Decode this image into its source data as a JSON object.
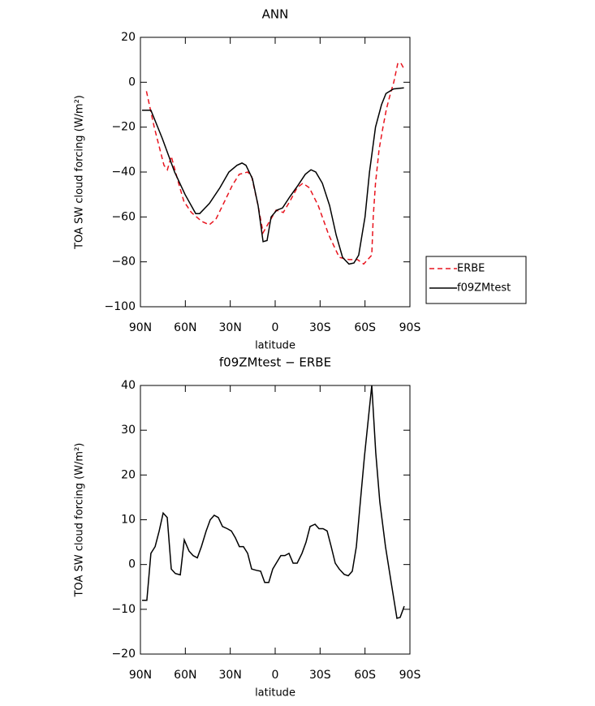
{
  "chart_data": [
    {
      "type": "line",
      "title": "ANN",
      "ylabel": "TOA SW cloud forcing (W/m²)",
      "xlabel": "latitude",
      "xlim": [
        90,
        -90
      ],
      "ylim": [
        -100,
        20
      ],
      "xticks": [
        {
          "value": 90,
          "label": "90N"
        },
        {
          "value": 60,
          "label": "60N"
        },
        {
          "value": 30,
          "label": "30N"
        },
        0,
        {
          "value": -30,
          "label": "30S"
        },
        {
          "value": -60,
          "label": "60S"
        },
        {
          "value": -90,
          "label": "90S"
        }
      ],
      "yticks": [
        20,
        0,
        {
          "value": -20,
          "label": "−20"
        },
        {
          "value": -40,
          "label": "−40"
        },
        {
          "value": -60,
          "label": "−60"
        },
        {
          "value": -80,
          "label": "−80"
        },
        {
          "value": -100,
          "label": "−100"
        }
      ],
      "series": [
        {
          "name": "ERBE",
          "color": "#e8141e",
          "dash": true,
          "x": [
            86,
            80.8,
            74.3,
            72,
            69.4,
            64.5,
            61,
            56,
            49,
            44,
            39.6,
            33,
            28.7,
            24,
            18.4,
            15.7,
            11.4,
            8.1,
            3.8,
            -0.6,
            -5.4,
            -9.8,
            -14.7,
            -18.5,
            -22.8,
            -28.8,
            -35.8,
            -42.8,
            -49.3,
            -55,
            -59.1,
            -64.5,
            -65.5,
            -67,
            -69.4,
            -72,
            -74.3,
            -77,
            -79.2,
            -81.9,
            -84,
            -86
          ],
          "values": [
            -4,
            -20,
            -37,
            -39,
            -33,
            -45,
            -53,
            -58,
            -62,
            -63.5,
            -61,
            -52,
            -46,
            -41,
            -40,
            -42,
            -55,
            -67,
            -62,
            -57,
            -58,
            -53,
            -47,
            -45,
            -47,
            -55,
            -68,
            -78,
            -79,
            -79,
            -81,
            -77,
            -60,
            -45,
            -30,
            -20,
            -12,
            -5,
            0,
            8.5,
            8.5,
            6
          ]
        },
        {
          "name": "f09ZMtest",
          "color": "#000000",
          "dash": false,
          "x": [
            88.9,
            83,
            75.4,
            67.2,
            60.2,
            53.1,
            50.4,
            43.9,
            36.9,
            30.9,
            25.5,
            22.2,
            19.5,
            15.2,
            11.4,
            8.1,
            5.4,
            2.7,
            -1.1,
            -4.9,
            -9.8,
            -15.2,
            -20.1,
            -23.9,
            -27.1,
            -31.5,
            -36.4,
            -40.7,
            -45,
            -49.3,
            -52.6,
            -55.8,
            -58,
            -60,
            -63,
            -67,
            -71,
            -74,
            -79,
            -86
          ],
          "values": [
            -12.5,
            -12.5,
            -25,
            -40,
            -50,
            -58.5,
            -58.5,
            -54,
            -47,
            -40,
            -37,
            -36,
            -37,
            -43,
            -55,
            -71,
            -70.5,
            -60,
            -57,
            -56,
            -51,
            -46,
            -41,
            -39,
            -40,
            -45,
            -55,
            -68,
            -78,
            -81,
            -80.5,
            -77,
            -68,
            -60,
            -40,
            -20,
            -10,
            -5,
            -3,
            -2.5
          ]
        }
      ]
    },
    {
      "type": "line",
      "title": "f09ZMtest − ERBE",
      "ylabel": "TOA SW cloud forcing (W/m²)",
      "xlabel": "latitude",
      "xlim": [
        90,
        -90
      ],
      "ylim": [
        -20,
        40
      ],
      "xticks": [
        {
          "value": 90,
          "label": "90N"
        },
        {
          "value": 60,
          "label": "60N"
        },
        {
          "value": 30,
          "label": "30N"
        },
        0,
        {
          "value": -30,
          "label": "30S"
        },
        {
          "value": -60,
          "label": "60S"
        },
        {
          "value": -90,
          "label": "90S"
        }
      ],
      "yticks": [
        40,
        30,
        20,
        10,
        0,
        {
          "value": -10,
          "label": "−10"
        },
        {
          "value": -20,
          "label": "−20"
        }
      ],
      "series": [
        {
          "color": "#000000",
          "dash": false,
          "x": [
            88.9,
            85.7,
            83,
            80.2,
            77.5,
            74.8,
            72.1,
            69.4,
            66.7,
            63.4,
            60.7,
            57.5,
            54.8,
            52,
            49.3,
            46.1,
            43.4,
            40.7,
            38,
            35.2,
            32,
            29.3,
            26.6,
            23.9,
            21.2,
            18.4,
            15.7,
            12.5,
            9.7,
            7,
            4.3,
            1.6,
            -1.1,
            -3.8,
            -6.5,
            -9.2,
            -12,
            -14.7,
            -17.9,
            -20.6,
            -23.3,
            -26.6,
            -29.3,
            -32,
            -34.7,
            -37.4,
            -40.1,
            -42.8,
            -46.1,
            -48.8,
            -51.5,
            -54.2,
            -56.9,
            -59.6,
            -64.5,
            -67.2,
            -69.9,
            -73.7,
            -77.5,
            -81.3,
            -83.5,
            -86.2
          ],
          "values": [
            -8,
            -8,
            2.5,
            4,
            7.5,
            11.5,
            10.5,
            -1,
            -2,
            -2.3,
            5.5,
            3,
            2,
            1.5,
            4,
            7.5,
            10,
            11,
            10.5,
            8.5,
            8,
            7.5,
            6,
            4,
            4,
            2.5,
            -1,
            -1.3,
            -1.5,
            -4,
            -4,
            -1,
            0.5,
            2,
            2,
            2.5,
            0.3,
            0.3,
            2.5,
            5,
            8.5,
            9,
            8,
            8,
            7.5,
            4,
            0.3,
            -1,
            -2.2,
            -2.5,
            -1.5,
            4,
            14,
            24,
            40,
            25,
            14,
            4,
            -4,
            -12,
            -11.8,
            -9.3
          ]
        }
      ]
    }
  ]
}
